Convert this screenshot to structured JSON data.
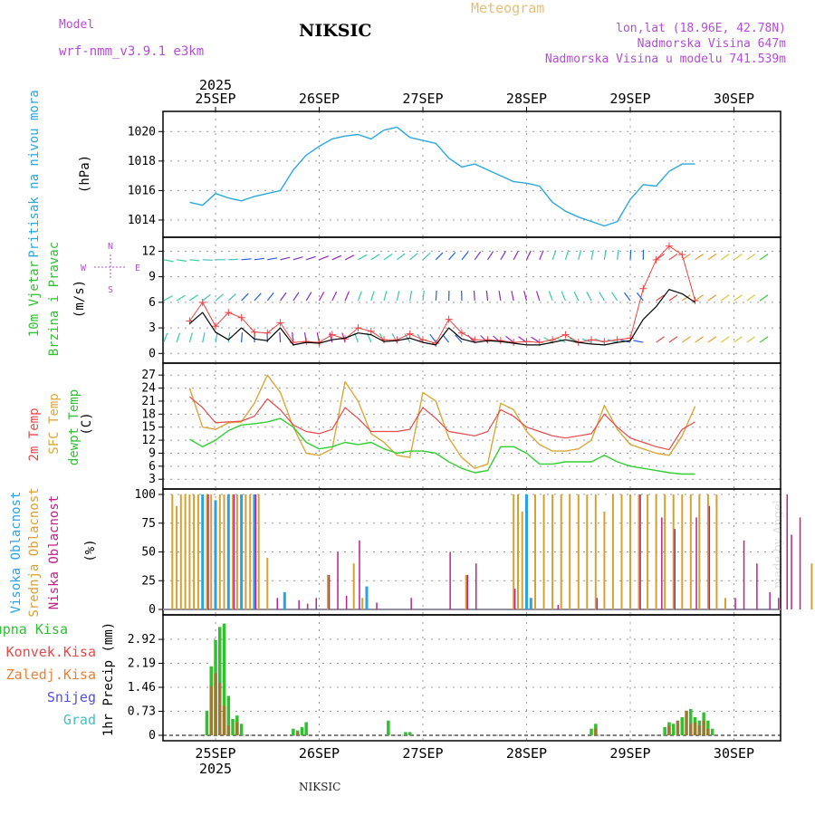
{
  "header": {
    "model_label": "Model",
    "model_name": "wrf-nmm_v3.9.1 e3km",
    "station": "NIKSIC",
    "meteogram": "Meteogram",
    "coords": "lon,lat (18.96E, 42.78N)",
    "elevation": "Nadmorska Visina 647m",
    "model_elevation": "Nadmorska Visina u modelu 741.539m",
    "footer_station": "NIKSIC",
    "watermark": "made by Angel"
  },
  "colors": {
    "pressure": "#29a8e0",
    "t2m": "#e84848",
    "sfc": "#d8a838",
    "dewpt": "#30d030",
    "wind_black": "#000000",
    "gust": "#f04040",
    "total_precip": "#30c030",
    "conv_precip": "#e84848",
    "grid_precip": "#e8803a",
    "snow": "#5050e0",
    "hail": "#40c0c0",
    "high_cloud": "#2aa2e8",
    "mid_cloud": "#d8a030",
    "low_cloud": "#c0208a"
  },
  "time_axis": {
    "year": "2025",
    "days": [
      "25SEP",
      "26SEP",
      "27SEP",
      "28SEP",
      "29SEP",
      "30SEP"
    ]
  },
  "chart_data": [
    {
      "id": "pressure",
      "type": "line",
      "ylabel_main": "Pritisak na nivou mora",
      "ylabel_unit": "(hPa)",
      "yticks": [
        "1014",
        "1016",
        "1018",
        "1020"
      ],
      "ylim": [
        1013.2,
        1021.0
      ],
      "x_hours_start": -6,
      "step_hours": 3,
      "values": [
        1015.2,
        1015.0,
        1015.8,
        1015.5,
        1015.3,
        1015.6,
        1015.8,
        1016.0,
        1017.4,
        1018.4,
        1019.0,
        1019.5,
        1019.7,
        1019.8,
        1019.5,
        1020.1,
        1020.3,
        1019.6,
        1019.4,
        1019.2,
        1018.2,
        1017.6,
        1017.8,
        1017.4,
        1017.0,
        1016.6,
        1016.5,
        1016.3,
        1015.2,
        1014.6,
        1014.2,
        1013.9,
        1013.6,
        1013.9,
        1015.4,
        1016.4,
        1016.3,
        1017.3,
        1017.8,
        1017.8
      ]
    },
    {
      "id": "wind",
      "type": "line",
      "ylabel_main": "10m Vjetar",
      "ylabel_sub": "Brzina i Pravac",
      "ylabel_unit": "(m/s)",
      "compass": [
        "N",
        "W",
        "E",
        "S"
      ],
      "yticks": [
        "0",
        "3",
        "6",
        "9",
        "12"
      ],
      "ylim": [
        -0.5,
        13
      ],
      "x_hours_start": -6,
      "step_hours": 3,
      "series": [
        {
          "name": "10m wind speed",
          "values": [
            3.5,
            4.8,
            2.5,
            1.6,
            3.0,
            1.7,
            1.5,
            3.0,
            1.0,
            1.3,
            1.2,
            1.6,
            1.8,
            2.4,
            2.2,
            1.4,
            1.5,
            1.8,
            1.3,
            1.0,
            3.0,
            1.7,
            1.3,
            1.5,
            1.4,
            1.2,
            1.0,
            1.0,
            1.3,
            1.6,
            1.3,
            1.1,
            1.0,
            1.3,
            1.5,
            4.0,
            5.5,
            7.5,
            7.0,
            6.0
          ]
        },
        {
          "name": "gust",
          "values": [
            3.8,
            6.0,
            3.2,
            4.8,
            4.2,
            2.5,
            2.4,
            3.6,
            1.3,
            1.4,
            1.3,
            2.2,
            1.7,
            3.0,
            2.6,
            1.6,
            1.6,
            2.3,
            1.6,
            1.2,
            4.0,
            2.4,
            1.6,
            1.6,
            1.5,
            1.3,
            1.4,
            1.3,
            1.6,
            2.2,
            1.3,
            1.6,
            1.4,
            1.6,
            1.8,
            7.6,
            11.0,
            12.6,
            11.6,
            6.2
          ]
        }
      ]
    },
    {
      "id": "temperature",
      "type": "line",
      "ylabel_main": "2m Temp",
      "ylabel_sub": "SFC Temp",
      "ylabel_sub2": "dewpt Temp",
      "ylabel_unit": "(C)",
      "yticks": [
        "3",
        "6",
        "9",
        "12",
        "15",
        "18",
        "21",
        "24",
        "27"
      ],
      "ylim": [
        2,
        28.5
      ],
      "x_hours_start": -6,
      "step_hours": 3,
      "series": [
        {
          "name": "2m Temp",
          "values": [
            22.0,
            19.5,
            16.0,
            16.2,
            16.4,
            17.5,
            21.5,
            19.0,
            15.5,
            14.0,
            13.5,
            14.5,
            19.5,
            17.0,
            14.0,
            14.0,
            14.0,
            14.5,
            19.5,
            17.0,
            14.0,
            13.5,
            13.0,
            14.0,
            19.0,
            17.5,
            15.0,
            14.0,
            13.0,
            12.5,
            13.0,
            13.5,
            18.0,
            15.0,
            12.5,
            11.5,
            10.5,
            9.8,
            14.5,
            16.2
          ]
        },
        {
          "name": "SFC Temp",
          "values": [
            24.0,
            15.0,
            14.5,
            16.0,
            16.2,
            20.5,
            27.0,
            23.0,
            15.0,
            9.0,
            8.5,
            10.0,
            25.5,
            21.0,
            13.5,
            11.5,
            8.5,
            8.0,
            23.0,
            21.0,
            12.5,
            8.0,
            5.5,
            6.5,
            20.5,
            19.0,
            14.0,
            11.0,
            9.5,
            9.5,
            10.0,
            12.0,
            20.0,
            14.5,
            11.0,
            10.0,
            9.0,
            8.5,
            13.0,
            19.8
          ]
        },
        {
          "name": "dewpt Temp",
          "values": [
            12.2,
            10.5,
            12.0,
            14.2,
            15.5,
            15.8,
            16.2,
            17.0,
            15.0,
            11.5,
            10.0,
            10.5,
            11.5,
            11.0,
            11.5,
            10.0,
            9.0,
            9.5,
            9.5,
            9.0,
            7.0,
            5.5,
            4.5,
            5.0,
            10.5,
            10.5,
            9.0,
            6.5,
            6.5,
            7.0,
            7.0,
            7.0,
            8.5,
            7.0,
            6.0,
            5.5,
            5.0,
            4.5,
            4.2,
            4.2
          ]
        }
      ]
    },
    {
      "id": "clouds",
      "type": "bar",
      "ylabel_main": "Visoka Oblacnost",
      "ylabel_sub": "Srednja Oblacnost",
      "ylabel_sub2": "Niska Oblacnost",
      "ylabel_unit": "(%)",
      "yticks": [
        "0",
        "25",
        "50",
        "75",
        "100"
      ],
      "ylim": [
        0,
        100
      ],
      "step_hours": 1,
      "series": [
        {
          "name": "Visoka Oblacnost",
          "points": [
            [
              -3,
              100
            ],
            [
              0,
              95
            ],
            [
              3,
              100
            ],
            [
              6,
              100
            ],
            [
              9,
              100
            ],
            [
              16,
              15
            ],
            [
              35,
              20
            ],
            [
              72,
              100
            ],
            [
              73,
              10
            ]
          ]
        },
        {
          "name": "Srednja Oblacnost",
          "points": [
            [
              -10,
              100
            ],
            [
              -9,
              90
            ],
            [
              -8,
              100
            ],
            [
              -7,
              100
            ],
            [
              -6,
              100
            ],
            [
              -5,
              100
            ],
            [
              -4,
              100
            ],
            [
              -2,
              100
            ],
            [
              -1,
              100
            ],
            [
              1,
              100
            ],
            [
              2,
              100
            ],
            [
              4,
              100
            ],
            [
              5,
              100
            ],
            [
              7,
              100
            ],
            [
              8,
              100
            ],
            [
              10,
              100
            ],
            [
              12,
              45
            ],
            [
              26,
              30
            ],
            [
              32,
              40
            ],
            [
              34,
              10
            ],
            [
              58,
              30
            ],
            [
              69,
              100
            ],
            [
              70,
              100
            ],
            [
              71,
              85
            ],
            [
              74,
              100
            ],
            [
              76,
              100
            ],
            [
              78,
              100
            ],
            [
              80,
              100
            ],
            [
              82,
              100
            ],
            [
              84,
              100
            ],
            [
              86,
              100
            ],
            [
              88,
              100
            ],
            [
              90,
              85
            ],
            [
              92,
              100
            ],
            [
              94,
              100
            ],
            [
              96,
              100
            ],
            [
              98,
              100
            ],
            [
              100,
              100
            ],
            [
              102,
              100
            ],
            [
              104,
              100
            ],
            [
              106,
              100
            ],
            [
              108,
              100
            ],
            [
              110,
              100
            ],
            [
              112,
              100
            ],
            [
              114,
              100
            ],
            [
              116,
              100
            ],
            [
              118,
              10
            ],
            [
              138,
              40
            ]
          ]
        },
        {
          "name": "Niska Oblacnost",
          "points": [
            [
              -2,
              100
            ],
            [
              4,
              100
            ],
            [
              9,
              100
            ],
            [
              14,
              10
            ],
            [
              19,
              8
            ],
            [
              21,
              5
            ],
            [
              23,
              10
            ],
            [
              26,
              30
            ],
            [
              28,
              50
            ],
            [
              30,
              12
            ],
            [
              33,
              60
            ],
            [
              37,
              6
            ],
            [
              45,
              10
            ],
            [
              54,
              50
            ],
            [
              58,
              30
            ],
            [
              60,
              40
            ],
            [
              69,
              18
            ],
            [
              79,
              4
            ],
            [
              88,
              10
            ],
            [
              98,
              100
            ],
            [
              103,
              80
            ],
            [
              106,
              70
            ],
            [
              111,
              80
            ],
            [
              114,
              90
            ],
            [
              120,
              10
            ],
            [
              122,
              60
            ],
            [
              125,
              40
            ],
            [
              128,
              15
            ],
            [
              130,
              10
            ],
            [
              132,
              100
            ],
            [
              133,
              65
            ],
            [
              135,
              80
            ]
          ]
        }
      ]
    },
    {
      "id": "precip",
      "type": "bar",
      "ylabel_main": "1hr Precip",
      "ylabel_unit": "(mm)",
      "yticks": [
        "0",
        "0.73",
        "1.46",
        "2.19",
        "2.92"
      ],
      "ylim": [
        0,
        3.5
      ],
      "step_hours": 1,
      "legend": [
        "Ukupna Kisa",
        "Konvek.Kisa",
        "Zaledj.Kisa",
        "Snijeg",
        "Grad"
      ],
      "series": [
        {
          "name": "Ukupna Kisa",
          "points": [
            [
              -2,
              0.75
            ],
            [
              -1,
              2.1
            ],
            [
              0,
              2.9
            ],
            [
              1,
              3.3
            ],
            [
              2,
              3.4
            ],
            [
              3,
              1.2
            ],
            [
              4,
              0.5
            ],
            [
              5,
              0.6
            ],
            [
              6,
              0.35
            ],
            [
              18,
              0.2
            ],
            [
              19,
              0.15
            ],
            [
              20,
              0.25
            ],
            [
              21,
              0.4
            ],
            [
              40,
              0.45
            ],
            [
              44,
              0.1
            ],
            [
              45,
              0.1
            ],
            [
              87,
              0.2
            ],
            [
              88,
              0.35
            ],
            [
              104,
              0.25
            ],
            [
              105,
              0.4
            ],
            [
              106,
              0.35
            ],
            [
              108,
              0.55
            ],
            [
              110,
              0.8
            ],
            [
              111,
              0.55
            ],
            [
              112,
              0.45
            ],
            [
              113,
              0.7
            ],
            [
              114,
              0.45
            ],
            [
              115,
              0.2
            ]
          ]
        },
        {
          "name": "Konvek.Kisa",
          "points": [
            [
              -1,
              1.5
            ],
            [
              0,
              1.9
            ],
            [
              1,
              1.6
            ],
            [
              2,
              0.9
            ],
            [
              3,
              0.3
            ],
            [
              5,
              0.4
            ],
            [
              19,
              0.1
            ],
            [
              88,
              0.2
            ],
            [
              105,
              0.3
            ],
            [
              107,
              0.45
            ],
            [
              109,
              0.75
            ],
            [
              110,
              0.35
            ],
            [
              111,
              0.4
            ],
            [
              112,
              0.3
            ],
            [
              113,
              0.45
            ],
            [
              114,
              0.2
            ]
          ]
        }
      ]
    }
  ]
}
